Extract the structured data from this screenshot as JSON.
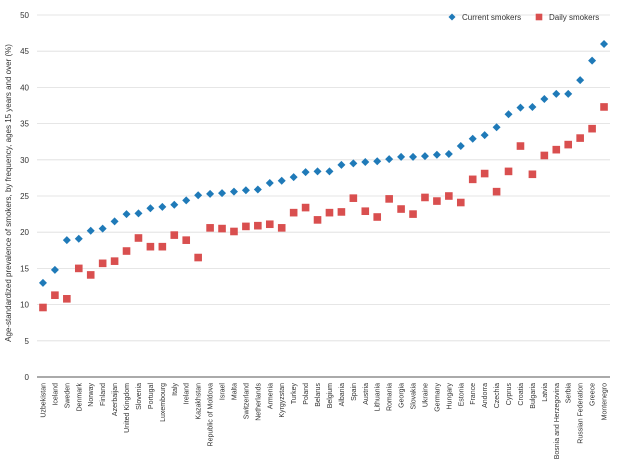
{
  "chart_data": {
    "type": "scatter",
    "ylabel": "Age-standardized prevalence of smokers, by frequency, ages 15 years and over (%)",
    "ylim": [
      0,
      50
    ],
    "yticks": [
      0,
      5,
      10,
      15,
      20,
      25,
      30,
      35,
      40,
      45,
      50
    ],
    "grid": "horizontal",
    "legend_position": "top-right",
    "categories": [
      "Uzbekistan",
      "Iceland",
      "Sweden",
      "Denmark",
      "Norway",
      "Finland",
      "Azerbaijan",
      "United Kingdom",
      "Slovenia",
      "Portugal",
      "Luxembourg",
      "Italy",
      "Ireland",
      "Kazakhstan",
      "Republic of Moldova",
      "Israel",
      "Malta",
      "Switzerland",
      "Netherlands",
      "Armenia",
      "Kyrgyzstan",
      "Turkey",
      "Poland",
      "Belarus",
      "Belgium",
      "Albania",
      "Spain",
      "Austria",
      "Lithuania",
      "Romania",
      "Georgia",
      "Slovakia",
      "Ukraine",
      "Germany",
      "Hungary",
      "Estonia",
      "France",
      "Andorra",
      "Czechia",
      "Cyprus",
      "Croatia",
      "Bulgaria",
      "Latvia",
      "Bosnia and Herzegovina",
      "Serbia",
      "Russian Federation",
      "Greece",
      "Montenegro"
    ],
    "series": [
      {
        "name": "Current smokers",
        "color": "#1f7ab8",
        "marker": "diamond",
        "values": [
          13.0,
          14.8,
          18.9,
          19.1,
          20.2,
          20.5,
          21.5,
          22.5,
          22.6,
          23.3,
          23.5,
          23.8,
          24.4,
          25.1,
          25.3,
          25.4,
          25.6,
          25.8,
          25.9,
          26.8,
          27.1,
          27.6,
          28.3,
          28.4,
          28.4,
          29.3,
          29.5,
          29.7,
          29.8,
          30.1,
          30.4,
          30.4,
          30.5,
          30.7,
          30.8,
          31.9,
          32.9,
          33.4,
          34.5,
          36.3,
          37.2,
          37.3,
          38.4,
          39.1,
          39.1,
          41.0,
          43.7,
          46.0
        ]
      },
      {
        "name": "Daily smokers",
        "color": "#d94f4f",
        "marker": "square",
        "values": [
          9.6,
          11.3,
          10.8,
          15.0,
          14.1,
          15.7,
          16.0,
          17.4,
          19.2,
          18.0,
          18.0,
          19.6,
          18.9,
          16.5,
          20.6,
          20.5,
          20.1,
          20.8,
          20.9,
          21.1,
          20.6,
          22.7,
          23.4,
          21.7,
          22.7,
          22.8,
          24.7,
          22.9,
          22.1,
          24.6,
          23.2,
          22.5,
          24.8,
          24.3,
          25.0,
          24.1,
          27.3,
          28.1,
          25.6,
          28.4,
          31.9,
          28.0,
          30.6,
          31.4,
          32.1,
          33.0,
          34.3,
          37.3
        ]
      }
    ]
  }
}
